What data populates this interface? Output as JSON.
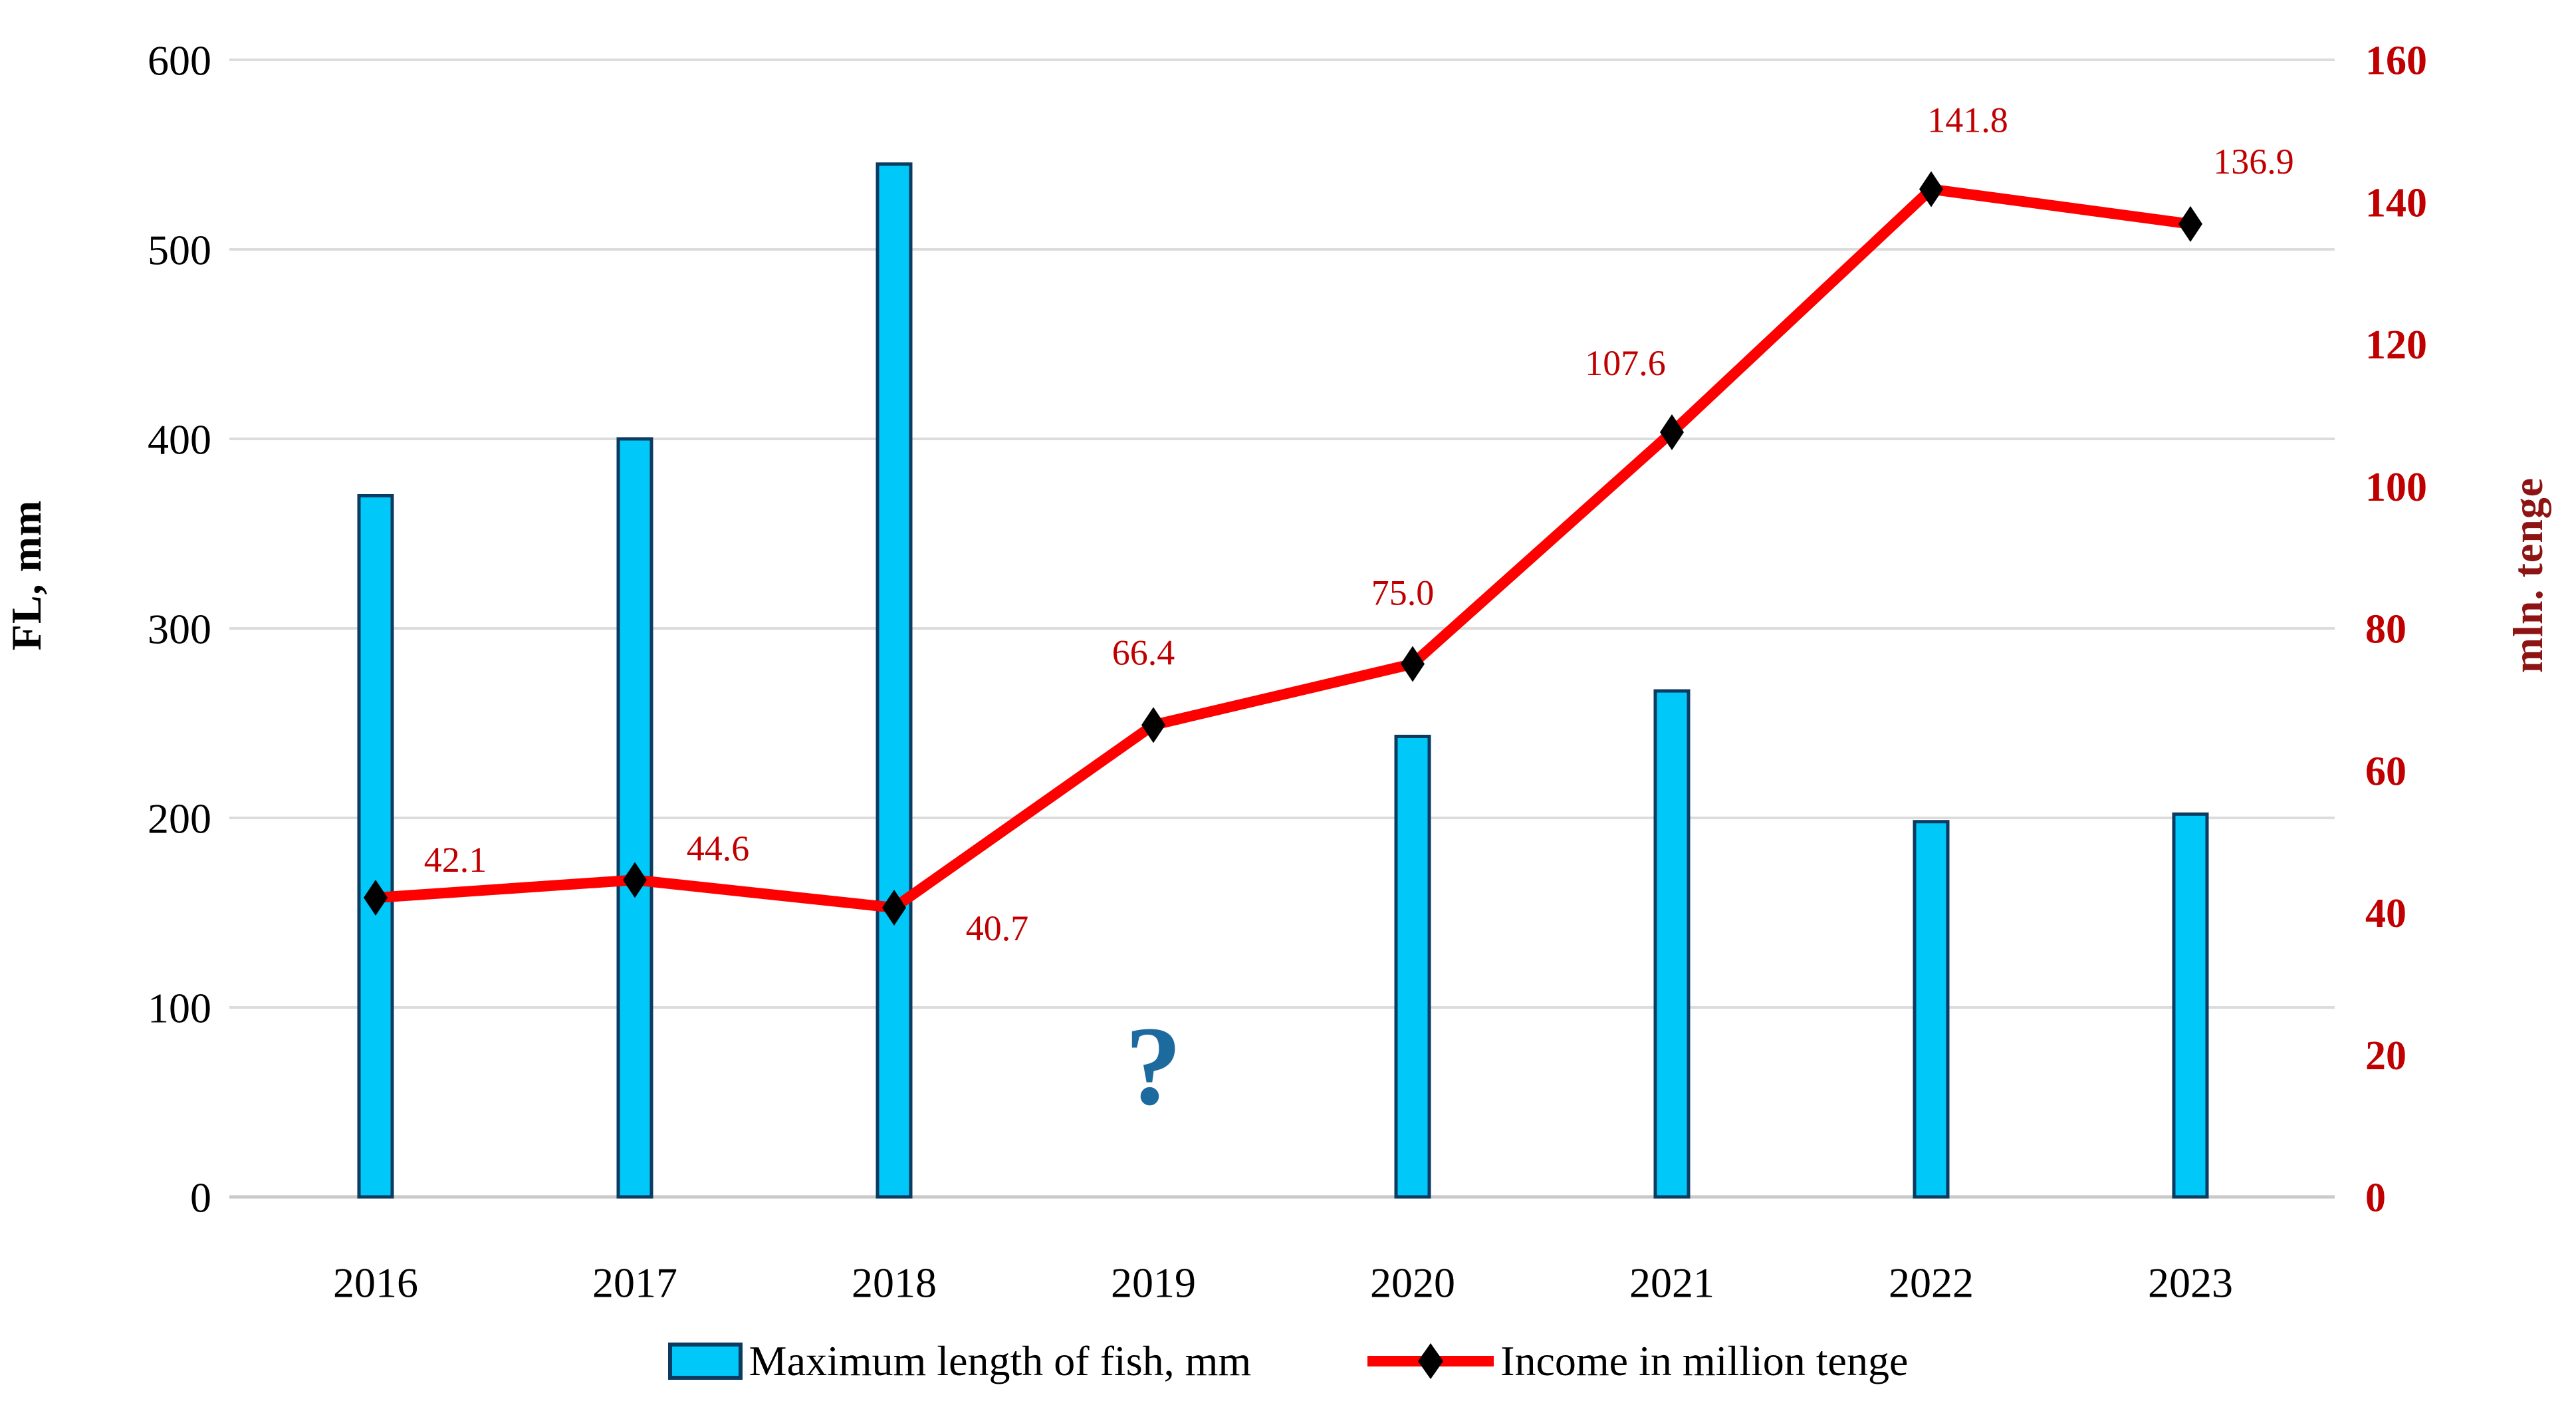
{
  "chart_data": {
    "type": "bar",
    "subtype": "dual-axis bar and line combo",
    "categories": [
      "2016",
      "2017",
      "2018",
      "2019",
      "2020",
      "2021",
      "2022",
      "2023"
    ],
    "series": [
      {
        "name": "Maximum length of fish, mm",
        "type": "bar",
        "axis": "left",
        "values": [
          370,
          400,
          545,
          null,
          243,
          267,
          198,
          202
        ]
      },
      {
        "name": "Income in million tenge",
        "type": "line",
        "axis": "right",
        "values": [
          42.1,
          44.6,
          40.7,
          66.4,
          75.0,
          107.6,
          141.8,
          136.9
        ],
        "labels": [
          "42.1",
          "44.6",
          "40.7",
          "66.4",
          "75.0",
          "107.6",
          "141.8",
          "136.9"
        ]
      }
    ],
    "left_axis": {
      "label": "FL, mm",
      "min": 0,
      "max": 600,
      "step": 100,
      "ticks": [
        "0",
        "100",
        "200",
        "300",
        "400",
        "500",
        "600"
      ]
    },
    "right_axis": {
      "label": "mln. tenge",
      "min": 0,
      "max": 160,
      "step": 20,
      "ticks": [
        "0",
        "20",
        "40",
        "60",
        "80",
        "100",
        "120",
        "140",
        "160"
      ]
    },
    "grid": true,
    "legend_position": "bottom",
    "annotations": [
      {
        "text": "?",
        "category": "2019",
        "left_value": 68
      }
    ]
  },
  "colors": {
    "bar_fill": "#00C8F8",
    "bar_border": "#0B3B61",
    "line": "#FF0000",
    "marker": "#000000",
    "data_label": "#C00000",
    "right_tick": "#C00000",
    "right_title": "#8E1414",
    "left_tick": "#000000",
    "grid": "#DCDCDC",
    "baseline": "#C9C9C9",
    "question_mark": "#1C6A9E",
    "text": "#000000"
  }
}
